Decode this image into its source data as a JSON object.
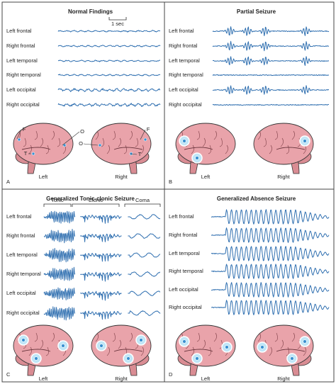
{
  "panels": [
    {
      "letter": "A",
      "title": "Normal Findings",
      "scale_label": "1 sec",
      "channels": [
        "Left frontal",
        "Right frontal",
        "Left temporal",
        "Right temporal",
        "Left occipital",
        "Right occipital"
      ],
      "brain_labels": [
        "Left",
        "Right"
      ],
      "electrode_labels": [
        "F",
        "O",
        "T",
        "O",
        "F",
        "T"
      ]
    },
    {
      "letter": "B",
      "title": "Partial Seizure",
      "channels": [
        "Left frontal",
        "Right frontal",
        "Left temporal",
        "Right temporal",
        "Left occipital",
        "Right occipital"
      ],
      "brain_labels": [
        "Left",
        "Right"
      ]
    },
    {
      "letter": "C",
      "title": "Generalized Tonic-clonic Seizure",
      "phases": [
        "Tonic",
        "Clonic",
        "Coma"
      ],
      "channels": [
        "Left frontal",
        "Right frontal",
        "Left temporal",
        "Right temporal",
        "Left occipital",
        "Right occipital"
      ],
      "brain_labels": [
        "Left",
        "Right"
      ]
    },
    {
      "letter": "D",
      "title": "Generalized Absence Seizure",
      "channels": [
        "Left frontal",
        "Right frontal",
        "Left temporal",
        "Right temporal",
        "Left occipital",
        "Right occipital"
      ],
      "brain_labels": [
        "Left",
        "Right"
      ]
    }
  ]
}
